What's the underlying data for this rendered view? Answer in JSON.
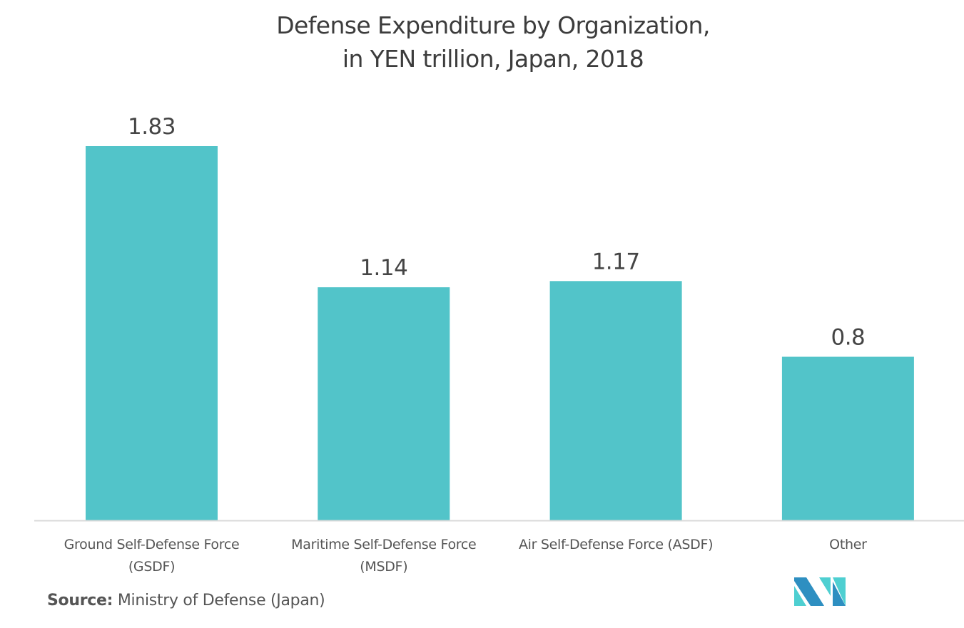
{
  "chart_data": {
    "type": "bar",
    "title": "Defense Expenditure by Organization, in YEN trillion, Japan, 2018",
    "title_lines": [
      "Defense Expenditure by Organization,",
      "in YEN trillion, Japan, 2018"
    ],
    "categories": [
      [
        "Ground Self-Defense Force",
        "(GSDF)"
      ],
      [
        "Maritime Self-Defense Force",
        "(MSDF)"
      ],
      [
        "Air Self-Defense Force (ASDF)"
      ],
      [
        "Other"
      ]
    ],
    "category_names": [
      "Ground Self-Defense Force (GSDF)",
      "Maritime Self-Defense Force (MSDF)",
      "Air Self-Defense Force (ASDF)",
      "Other"
    ],
    "values": [
      1.83,
      1.14,
      1.17,
      0.8
    ],
    "value_labels": [
      "1.83",
      "1.14",
      "1.17",
      "0.8"
    ],
    "xlabel": "",
    "ylabel": "",
    "ylim": [
      0,
      1.83
    ],
    "grid": false,
    "legend": "none",
    "bar_color": "#52C4C9",
    "axis_color": "#D9D9D9"
  },
  "source": {
    "label": "Source:",
    "text": " Ministry of Defense (Japan)"
  },
  "logo": {
    "name": "mordor-intelligence-logo",
    "colors": [
      "#2E8FC1",
      "#4ECFD1"
    ]
  }
}
